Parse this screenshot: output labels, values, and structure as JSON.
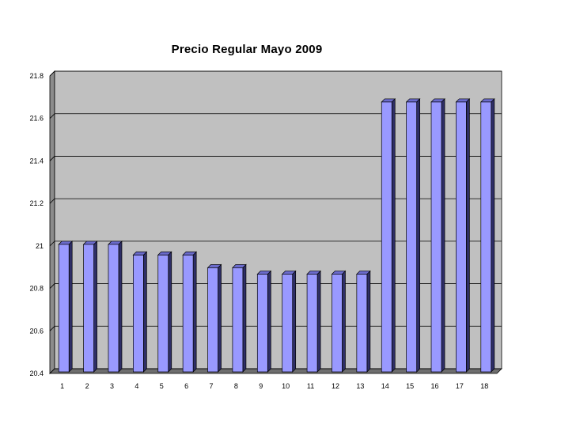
{
  "chart_data": {
    "type": "bar",
    "title": "Precio Regular  Mayo 2009",
    "xlabel": "",
    "ylabel": "",
    "categories": [
      "1",
      "2",
      "3",
      "4",
      "5",
      "6",
      "7",
      "8",
      "9",
      "10",
      "11",
      "12",
      "13",
      "14",
      "15",
      "16",
      "17",
      "18"
    ],
    "values": [
      21.0,
      21.0,
      21.0,
      20.95,
      20.95,
      20.95,
      20.89,
      20.89,
      20.86,
      20.86,
      20.86,
      20.86,
      20.86,
      21.67,
      21.67,
      21.67,
      21.67,
      21.67
    ],
    "ylim": [
      20.4,
      21.8
    ],
    "yticks": [
      "20.4",
      "20.6",
      "20.8",
      "21",
      "21.2",
      "21.4",
      "21.6",
      "21.8"
    ],
    "grid": true,
    "legend": "none",
    "style": "3d-bar",
    "colors": {
      "bar_front": "#9999ff",
      "bar_side": "#2e2e66",
      "bar_top": "#6b6bcc",
      "plot_back": "#c0c0c0",
      "plot_wall": "#8c8c8c",
      "plot_floor": "#6e6e6e"
    }
  }
}
